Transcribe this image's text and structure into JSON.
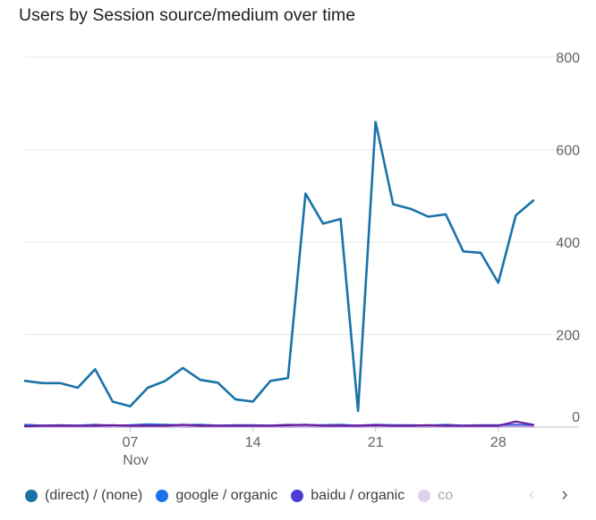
{
  "title": "Users by Session source/medium over time",
  "chart_data": {
    "type": "line",
    "title": "Users by Session source/medium over time",
    "xlabel": "",
    "ylabel": "",
    "ylim": [
      0,
      800
    ],
    "y_ticks": [
      0,
      200,
      400,
      600,
      800
    ],
    "y_axis_position": "right",
    "grid": true,
    "x": [
      "Nov 01",
      "Nov 02",
      "Nov 03",
      "Nov 04",
      "Nov 05",
      "Nov 06",
      "Nov 07",
      "Nov 08",
      "Nov 09",
      "Nov 10",
      "Nov 11",
      "Nov 12",
      "Nov 13",
      "Nov 14",
      "Nov 15",
      "Nov 16",
      "Nov 17",
      "Nov 18",
      "Nov 19",
      "Nov 20",
      "Nov 21",
      "Nov 22",
      "Nov 23",
      "Nov 24",
      "Nov 25",
      "Nov 26",
      "Nov 27",
      "Nov 28",
      "Nov 29",
      "Nov 30"
    ],
    "x_tick_labels": [
      {
        "index": 6,
        "label": "07",
        "sublabel": "Nov"
      },
      {
        "index": 13,
        "label": "14",
        "sublabel": ""
      },
      {
        "index": 20,
        "label": "21",
        "sublabel": ""
      },
      {
        "index": 27,
        "label": "28",
        "sublabel": ""
      }
    ],
    "series": [
      {
        "name": "(direct) / (none)",
        "color": "#1a73a8",
        "values": [
          100,
          95,
          95,
          85,
          125,
          55,
          45,
          85,
          100,
          128,
          102,
          96,
          60,
          55,
          100,
          106,
          505,
          440,
          450,
          35,
          660,
          482,
          472,
          455,
          460,
          380,
          377,
          312,
          458,
          490
        ]
      },
      {
        "name": "google / organic",
        "color": "#1a73e8",
        "values": [
          5,
          3,
          4,
          3,
          5,
          3,
          4,
          6,
          5,
          4,
          5,
          3,
          4,
          4,
          3,
          5,
          4,
          4,
          5,
          3,
          5,
          4,
          4,
          3,
          5,
          3,
          4,
          4,
          5,
          3
        ]
      },
      {
        "name": "baidu / organic",
        "color": "#4f3bd8",
        "values": [
          2,
          2,
          3,
          2,
          2,
          2,
          3,
          2,
          2,
          2,
          3,
          2,
          2,
          2,
          2,
          3,
          2,
          2,
          2,
          2,
          3,
          2,
          2,
          2,
          2,
          2,
          3,
          2,
          3,
          2
        ]
      },
      {
        "name": "co",
        "color": "#b39ddb",
        "values": [
          1,
          1,
          1,
          1,
          1,
          1,
          1,
          1,
          1,
          1,
          1,
          1,
          1,
          1,
          1,
          1,
          1,
          1,
          1,
          1,
          1,
          1,
          1,
          1,
          1,
          1,
          1,
          1,
          2,
          1
        ]
      },
      {
        "name": "",
        "color": "#6a1b9a",
        "values": [
          2,
          3,
          3,
          3,
          3,
          4,
          3,
          3,
          3,
          5,
          3,
          3,
          3,
          3,
          3,
          4,
          5,
          3,
          3,
          3,
          4,
          3,
          3,
          4,
          3,
          3,
          3,
          3,
          12,
          5
        ]
      }
    ]
  },
  "legend": [
    {
      "label": "(direct) / (none)",
      "color": "#1a73a8"
    },
    {
      "label": "google / organic",
      "color": "#1a73e8"
    },
    {
      "label": "baidu / organic",
      "color": "#4f3bd8"
    },
    {
      "label": "co",
      "color": "#b39ddb",
      "faded": true
    }
  ],
  "nav": {
    "prev_label": "‹",
    "next_label": "›"
  }
}
